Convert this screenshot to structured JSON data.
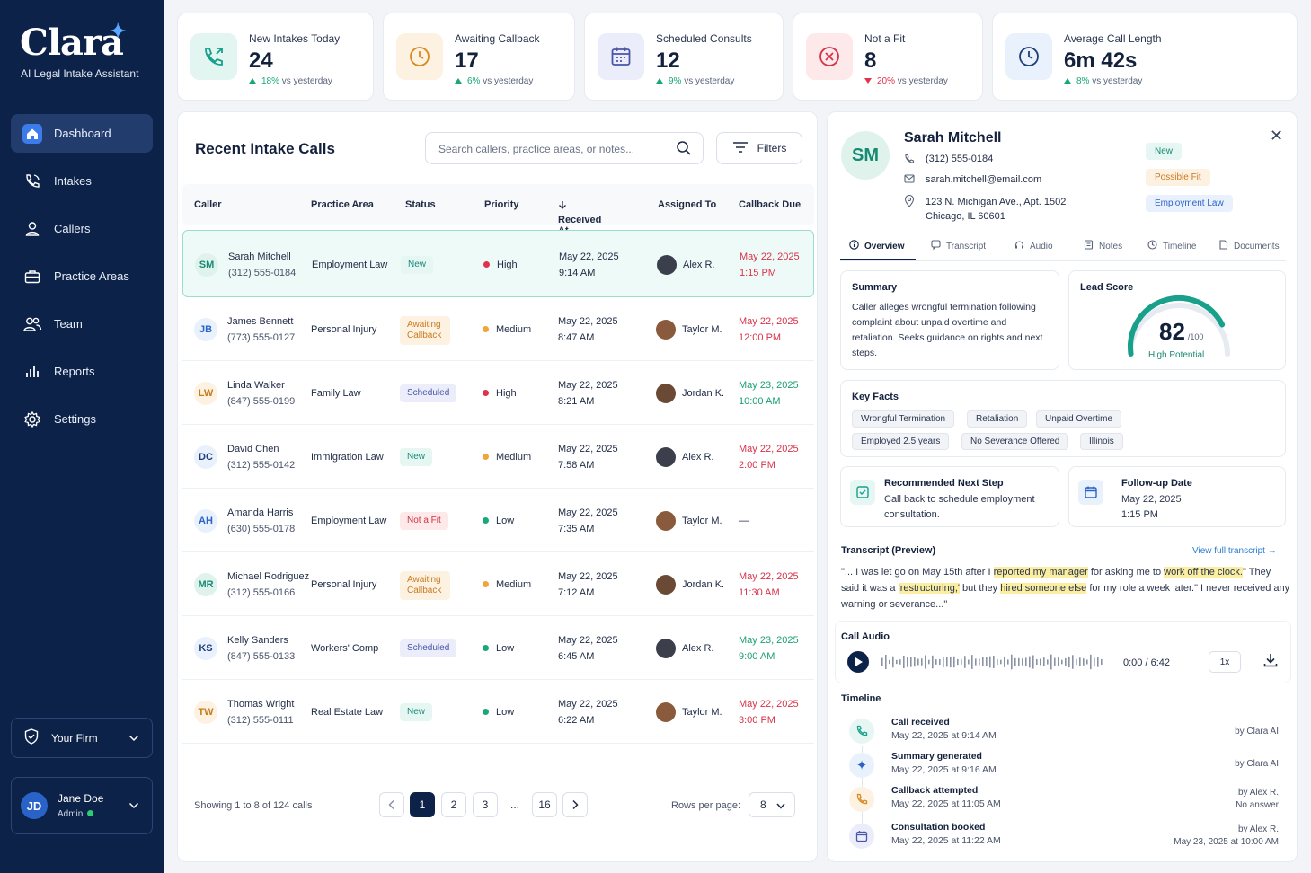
{
  "app": {
    "logo": "Clara",
    "subtitle": "AI Legal Intake Assistant"
  },
  "sidebar": {
    "items": [
      {
        "label": "Dashboard",
        "icon": "home-icon",
        "active": true
      },
      {
        "label": "Intakes",
        "icon": "phone-icon"
      },
      {
        "label": "Callers",
        "icon": "user-icon"
      },
      {
        "label": "Practice Areas",
        "icon": "briefcase-icon"
      },
      {
        "label": "Team",
        "icon": "team-icon"
      },
      {
        "label": "Reports",
        "icon": "bar-chart-icon"
      },
      {
        "label": "Settings",
        "icon": "gear-icon"
      }
    ],
    "firm": "Your Firm",
    "user": {
      "initials": "JD",
      "name": "Jane Doe",
      "role": "Admin"
    }
  },
  "stats": [
    {
      "label": "New Intakes Today",
      "value": "24",
      "trend": "18%",
      "trend_suffix": "vs yesterday",
      "direction": "up"
    },
    {
      "label": "Awaiting Callback",
      "value": "17",
      "trend": "6%",
      "trend_suffix": "vs yesterday",
      "direction": "up"
    },
    {
      "label": "Scheduled Consults",
      "value": "12",
      "trend": "9%",
      "trend_suffix": "vs yesterday",
      "direction": "up"
    },
    {
      "label": "Not a Fit",
      "value": "8",
      "trend": "20%",
      "trend_suffix": "vs yesterday",
      "direction": "down"
    },
    {
      "label": "Average Call Length",
      "value": "6m 42s",
      "trend": "8%",
      "trend_suffix": "vs yesterday",
      "direction": "up"
    }
  ],
  "table": {
    "title": "Recent Intake Calls",
    "search_placeholder": "Search callers, practice areas, or notes...",
    "filters_label": "Filters",
    "columns": [
      "Caller",
      "Practice Area",
      "Status",
      "Priority",
      "Received At",
      "Assigned To",
      "Callback Due"
    ],
    "rows": [
      {
        "initials": "SM",
        "name": "Sarah Mitchell",
        "phone": "(312) 555-0184",
        "area": "Employment Law",
        "status": "New",
        "status_type": "new",
        "priority": "High",
        "recv_date": "May 22, 2025",
        "recv_time": "9:14 AM",
        "assignee": "Alex R.",
        "due_date": "May 22, 2025",
        "due_time": "1:15 PM",
        "due_color": "red"
      },
      {
        "initials": "JB",
        "name": "James Bennett",
        "phone": "(773) 555-0127",
        "area": "Personal Injury",
        "status": "Awaiting Callback",
        "status_type": "await",
        "priority": "Medium",
        "recv_date": "May 22, 2025",
        "recv_time": "8:47 AM",
        "assignee": "Taylor M.",
        "due_date": "May 22, 2025",
        "due_time": "12:00 PM",
        "due_color": "red"
      },
      {
        "initials": "LW",
        "name": "Linda Walker",
        "phone": "(847) 555-0199",
        "area": "Family Law",
        "status": "Scheduled",
        "status_type": "sched",
        "priority": "High",
        "recv_date": "May 22, 2025",
        "recv_time": "8:21 AM",
        "assignee": "Jordan K.",
        "due_date": "May 23, 2025",
        "due_time": "10:00 AM",
        "due_color": "green"
      },
      {
        "initials": "DC",
        "name": "David Chen",
        "phone": "(312) 555-0142",
        "area": "Immigration Law",
        "status": "New",
        "status_type": "new",
        "priority": "Medium",
        "recv_date": "May 22, 2025",
        "recv_time": "7:58 AM",
        "assignee": "Alex R.",
        "due_date": "May 22, 2025",
        "due_time": "2:00 PM",
        "due_color": "red"
      },
      {
        "initials": "AH",
        "name": "Amanda Harris",
        "phone": "(630) 555-0178",
        "area": "Employment Law",
        "status": "Not a Fit",
        "status_type": "notfit",
        "priority": "Low",
        "recv_date": "May 22, 2025",
        "recv_time": "7:35 AM",
        "assignee": "Taylor M.",
        "due_date": "—",
        "due_time": "",
        "due_color": "none"
      },
      {
        "initials": "MR",
        "name": "Michael Rodriguez",
        "phone": "(312) 555-0166",
        "area": "Personal Injury",
        "status": "Awaiting Callback",
        "status_type": "await",
        "priority": "Medium",
        "recv_date": "May 22, 2025",
        "recv_time": "7:12 AM",
        "assignee": "Jordan K.",
        "due_date": "May 22, 2025",
        "due_time": "11:30 AM",
        "due_color": "red"
      },
      {
        "initials": "KS",
        "name": "Kelly Sanders",
        "phone": "(847) 555-0133",
        "area": "Workers' Comp",
        "status": "Scheduled",
        "status_type": "sched",
        "priority": "Low",
        "recv_date": "May 22, 2025",
        "recv_time": "6:45 AM",
        "assignee": "Alex R.",
        "due_date": "May 23, 2025",
        "due_time": "9:00 AM",
        "due_color": "green"
      },
      {
        "initials": "TW",
        "name": "Thomas Wright",
        "phone": "(312) 555-0111",
        "area": "Real Estate Law",
        "status": "New",
        "status_type": "new",
        "priority": "Low",
        "recv_date": "May 22, 2025",
        "recv_time": "6:22 AM",
        "assignee": "Taylor M.",
        "due_date": "May 22, 2025",
        "due_time": "3:00 PM",
        "due_color": "red"
      }
    ],
    "pagination": {
      "info": "Showing 1 to 8 of 124 calls",
      "pages": [
        "1",
        "2",
        "3",
        "...",
        "16"
      ],
      "current": "1",
      "rows_label": "Rows per page:",
      "rows_value": "8"
    }
  },
  "detail": {
    "initials": "SM",
    "name": "Sarah Mitchell",
    "phone": "(312) 555-0184",
    "email": "sarah.mitchell@email.com",
    "address1": "123 N. Michigan Ave., Apt. 1502",
    "address2": "Chicago, IL 60601",
    "tags": [
      "New",
      "Possible Fit",
      "Employment Law"
    ],
    "tabs": [
      "Overview",
      "Transcript",
      "Audio",
      "Notes",
      "Timeline",
      "Documents"
    ],
    "summary_title": "Summary",
    "summary_text": "Caller alleges wrongful termination following complaint about unpaid overtime and retaliation. Seeks guidance on rights and next steps.",
    "lead_title": "Lead Score",
    "lead_score": "82",
    "lead_max": "/100",
    "lead_label": "High Potential",
    "facts_title": "Key Facts",
    "facts": [
      "Wrongful Termination",
      "Retaliation",
      "Unpaid Overtime",
      "Employed 2.5 years",
      "No Severance Offered",
      "Illinois"
    ],
    "next_title": "Recommended Next Step",
    "next_text": "Call back to schedule employment consultation.",
    "follow_title": "Follow-up Date",
    "follow_date": "May 22, 2025",
    "follow_time": "1:15 PM",
    "transcript_title": "Transcript (Preview)",
    "transcript_link": "View full transcript",
    "transcript": {
      "p1": "\"... I was let go on May 15th after I ",
      "h1": "reported my manager",
      "p2": " for asking me to ",
      "h2": "work off the clock.",
      "p3": "\" They said it was a ",
      "h3": "'restructuring,'",
      "p4": " but they ",
      "h4": "hired someone else",
      "p5": " for my role a week later.\" I never received any warning or severance...\""
    },
    "audio_title": "Call Audio",
    "audio_time": "0:00 / 6:42",
    "audio_speed": "1x",
    "timeline_title": "Timeline",
    "timeline": [
      {
        "title": "Call received",
        "date": "May 22, 2025 at 9:14 AM",
        "by": "by Clara AI",
        "by2": "",
        "icon": "phone-icon",
        "color": "#e6f6f3"
      },
      {
        "title": "Summary generated",
        "date": "May 22, 2025 at 9:16 AM",
        "by": "by Clara AI",
        "by2": "",
        "icon": "sparkle-icon",
        "color": "#e9f1fc"
      },
      {
        "title": "Callback attempted",
        "date": "May 22, 2025 at 11:05 AM",
        "by": "by Alex R.",
        "by2": "No answer",
        "icon": "phone-icon",
        "color": "#fdf1e2"
      },
      {
        "title": "Consultation booked",
        "date": "May 22, 2025 at 11:22 AM",
        "by": "by Alex R.",
        "by2": "May 23, 2025 at 10:00 AM",
        "icon": "calendar-icon",
        "color": "#ebeefa"
      }
    ]
  }
}
